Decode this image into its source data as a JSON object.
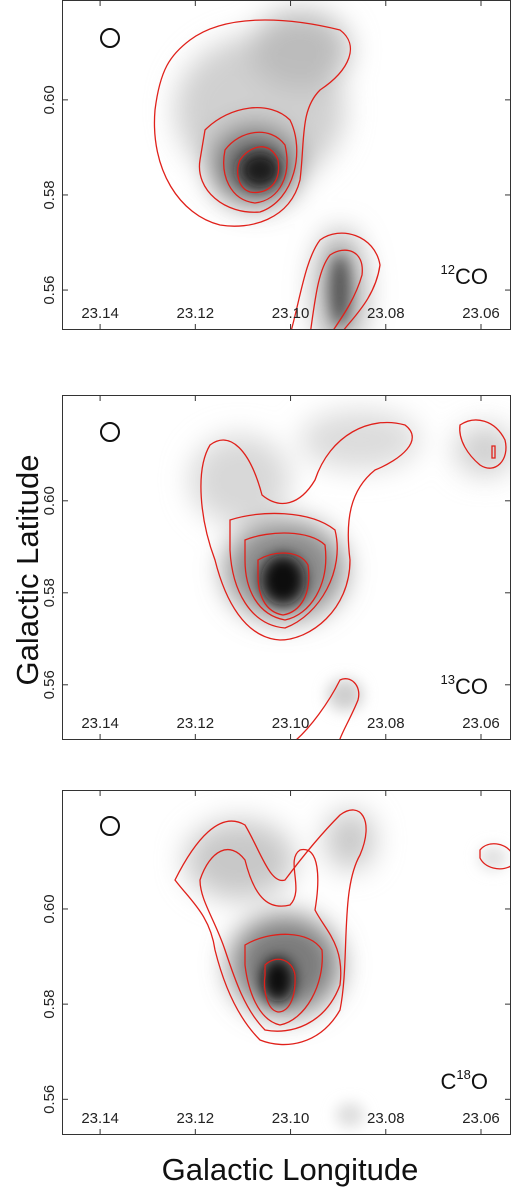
{
  "chart_data": [
    {
      "type": "heatmap",
      "label_parts": [
        {
          "sup": "12"
        },
        {
          "text": "CO"
        }
      ],
      "xlim": [
        23.148,
        23.0537
      ],
      "ylim": [
        0.5516,
        0.621
      ],
      "xticks": [
        23.14,
        23.12,
        {
          "value": 23.1,
          "label": "23.10"
        },
        23.08,
        23.06
      ],
      "yticks": [
        {
          "value": 0.56,
          "label": "0.56"
        },
        {
          "value": 0.58,
          "label": "0.58"
        },
        {
          "value": 0.6,
          "label": "0.60"
        }
      ]
    },
    {
      "type": "heatmap",
      "label_parts": [
        {
          "sup": "13"
        },
        {
          "text": "CO"
        }
      ],
      "xlim": [
        23.148,
        23.0537
      ],
      "ylim": [
        0.548,
        0.623
      ],
      "xticks": [
        23.14,
        23.12,
        {
          "value": 23.1,
          "label": "23.10"
        },
        23.08,
        23.06
      ],
      "yticks": [
        {
          "value": 0.56,
          "label": "0.56"
        },
        {
          "value": 0.58,
          "label": "0.58"
        },
        {
          "value": 0.6,
          "label": "0.60"
        }
      ]
    },
    {
      "type": "heatmap",
      "label_parts": [
        {
          "text": "C"
        },
        {
          "sup": "18"
        },
        {
          "text": "O"
        }
      ],
      "xlim": [
        23.148,
        23.0537
      ],
      "ylim": [
        0.5525,
        0.625
      ],
      "xticks": [
        23.14,
        23.12,
        {
          "value": 23.1,
          "label": "23.10"
        },
        23.08,
        23.06
      ],
      "yticks": [
        {
          "value": 0.56,
          "label": "0.56"
        },
        {
          "value": 0.58,
          "label": "0.58"
        },
        {
          "value": 0.6,
          "label": "0.60"
        }
      ]
    }
  ],
  "y_axis_title": "Galactic Latitude",
  "x_axis_title": "Galactic Longitude"
}
